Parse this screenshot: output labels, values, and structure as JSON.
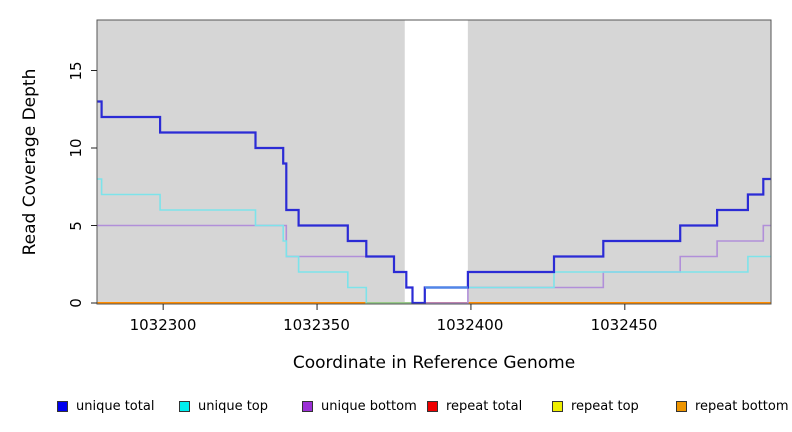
{
  "axes": {
    "x": {
      "label": "Coordinate in Reference Genome",
      "tick_labels": [
        "1032300",
        "1032350",
        "1032400",
        "1032450"
      ]
    },
    "y": {
      "label": "Read Coverage Depth",
      "tick_labels": [
        "0",
        "5",
        "10",
        "15"
      ]
    }
  },
  "legend": {
    "items": [
      {
        "label": "unique total",
        "color": "#0000ee"
      },
      {
        "label": "unique top",
        "color": "#00eeee"
      },
      {
        "label": "unique bottom",
        "color": "#9b30d5"
      },
      {
        "label": "repeat total",
        "color": "#ee0000"
      },
      {
        "label": "repeat top",
        "color": "#eeee00"
      },
      {
        "label": "repeat bottom",
        "color": "#ee9500"
      }
    ]
  },
  "chart_data": {
    "type": "line",
    "subtype": "step",
    "title": "",
    "xlabel": "Coordinate in Reference Genome",
    "ylabel": "Read Coverage Depth",
    "xlim": [
      1032278.5,
      1032497.5
    ],
    "ylim": [
      0,
      18.2
    ],
    "x_ticks": [
      1032300,
      1032350,
      1032400,
      1032450
    ],
    "y_ticks": [
      0,
      5,
      10,
      15
    ],
    "grid": false,
    "legend_position": "bottom",
    "plot_bg": "#d6d6d6",
    "repeat_region": {
      "x1": 1032378.5,
      "x2": 1032399,
      "color": "#ffffff",
      "note": "white band = repeat region interrupting gray unique background"
    },
    "series": [
      {
        "name": "unique total",
        "color": "#2b2bd5",
        "points": [
          [
            1032278.5,
            13
          ],
          [
            1032280,
            12
          ],
          [
            1032299,
            11
          ],
          [
            1032330,
            10
          ],
          [
            1032339,
            9
          ],
          [
            1032340,
            6
          ],
          [
            1032344,
            5
          ],
          [
            1032360,
            4
          ],
          [
            1032366,
            3
          ],
          [
            1032375,
            2
          ],
          [
            1032379,
            1
          ],
          [
            1032381,
            0
          ],
          [
            1032385,
            1
          ],
          [
            1032399,
            2
          ],
          [
            1032427,
            3
          ],
          [
            1032443,
            4
          ],
          [
            1032468,
            5
          ],
          [
            1032480,
            6
          ],
          [
            1032490,
            7
          ],
          [
            1032495,
            8
          ]
        ]
      },
      {
        "name": "unique top",
        "color": "#7de3ea",
        "points": [
          [
            1032278.5,
            8
          ],
          [
            1032280,
            7
          ],
          [
            1032299,
            6
          ],
          [
            1032330,
            5
          ],
          [
            1032339,
            4
          ],
          [
            1032340,
            3
          ],
          [
            1032344,
            2
          ],
          [
            1032360,
            1
          ],
          [
            1032366,
            0
          ],
          [
            1032385,
            1
          ],
          [
            1032427,
            2
          ],
          [
            1032490,
            3
          ]
        ]
      },
      {
        "name": "unique bottom",
        "color": "#b18fd9",
        "points": [
          [
            1032278.5,
            5
          ],
          [
            1032340,
            3
          ],
          [
            1032375,
            2
          ],
          [
            1032379,
            1
          ],
          [
            1032381,
            0
          ],
          [
            1032399,
            1
          ],
          [
            1032443,
            2
          ],
          [
            1032468,
            3
          ],
          [
            1032480,
            4
          ],
          [
            1032495,
            5
          ]
        ]
      },
      {
        "name": "repeat total",
        "color": "#cc3344",
        "points": [
          [
            1032278.5,
            0
          ]
        ]
      },
      {
        "name": "repeat top",
        "color": "#eeee00",
        "points": [
          [
            1032278.5,
            0
          ]
        ]
      },
      {
        "name": "repeat bottom",
        "color": "#ff8c00",
        "points": [
          [
            1032278.5,
            0
          ]
        ]
      }
    ],
    "overlays": [
      {
        "name": "repeat-total-visible-baseline",
        "layer": "pre",
        "color": "#cc3344",
        "y": 0,
        "x1": 1032381,
        "x2": 1032399
      },
      {
        "name": "unique-top-repeat-top-blend",
        "layer": "mid",
        "color": "#8fcf8f",
        "y": 0,
        "x1": 1032366,
        "x2": 1032381
      },
      {
        "name": "unique-total-top-overlap",
        "layer": "post",
        "color": "#4f87e8",
        "y": 1,
        "x1": 1032385,
        "x2": 1032399
      }
    ]
  }
}
